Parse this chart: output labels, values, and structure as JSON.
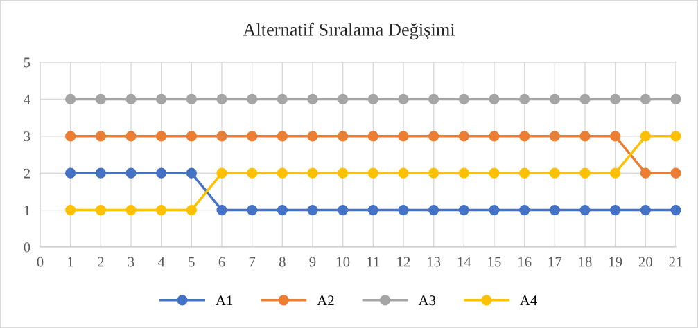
{
  "chart_data": {
    "type": "line",
    "title": "Alternatif Sıralama Değişimi",
    "x": [
      1,
      2,
      3,
      4,
      5,
      6,
      7,
      8,
      9,
      10,
      11,
      12,
      13,
      14,
      15,
      16,
      17,
      18,
      19,
      20,
      21
    ],
    "series": [
      {
        "name": "A1",
        "color": "#4472c4",
        "values": [
          2,
          2,
          2,
          2,
          2,
          1,
          1,
          1,
          1,
          1,
          1,
          1,
          1,
          1,
          1,
          1,
          1,
          1,
          1,
          1,
          1
        ]
      },
      {
        "name": "A2",
        "color": "#ed7d31",
        "values": [
          3,
          3,
          3,
          3,
          3,
          3,
          3,
          3,
          3,
          3,
          3,
          3,
          3,
          3,
          3,
          3,
          3,
          3,
          3,
          2,
          2
        ]
      },
      {
        "name": "A3",
        "color": "#a5a5a5",
        "values": [
          4,
          4,
          4,
          4,
          4,
          4,
          4,
          4,
          4,
          4,
          4,
          4,
          4,
          4,
          4,
          4,
          4,
          4,
          4,
          4,
          4
        ]
      },
      {
        "name": "A4",
        "color": "#ffc000",
        "values": [
          1,
          1,
          1,
          1,
          1,
          2,
          2,
          2,
          2,
          2,
          2,
          2,
          2,
          2,
          2,
          2,
          2,
          2,
          2,
          3,
          3
        ]
      }
    ],
    "xlim": [
      0,
      21
    ],
    "xticks": [
      0,
      1,
      2,
      3,
      4,
      5,
      6,
      7,
      8,
      9,
      10,
      11,
      12,
      13,
      14,
      15,
      16,
      17,
      18,
      19,
      20,
      21
    ],
    "ylim": [
      0,
      5
    ],
    "yticks": [
      0,
      1,
      2,
      3,
      4,
      5
    ],
    "grid": true,
    "legend": "bottom",
    "marker": "circle",
    "line_style": "solid"
  }
}
